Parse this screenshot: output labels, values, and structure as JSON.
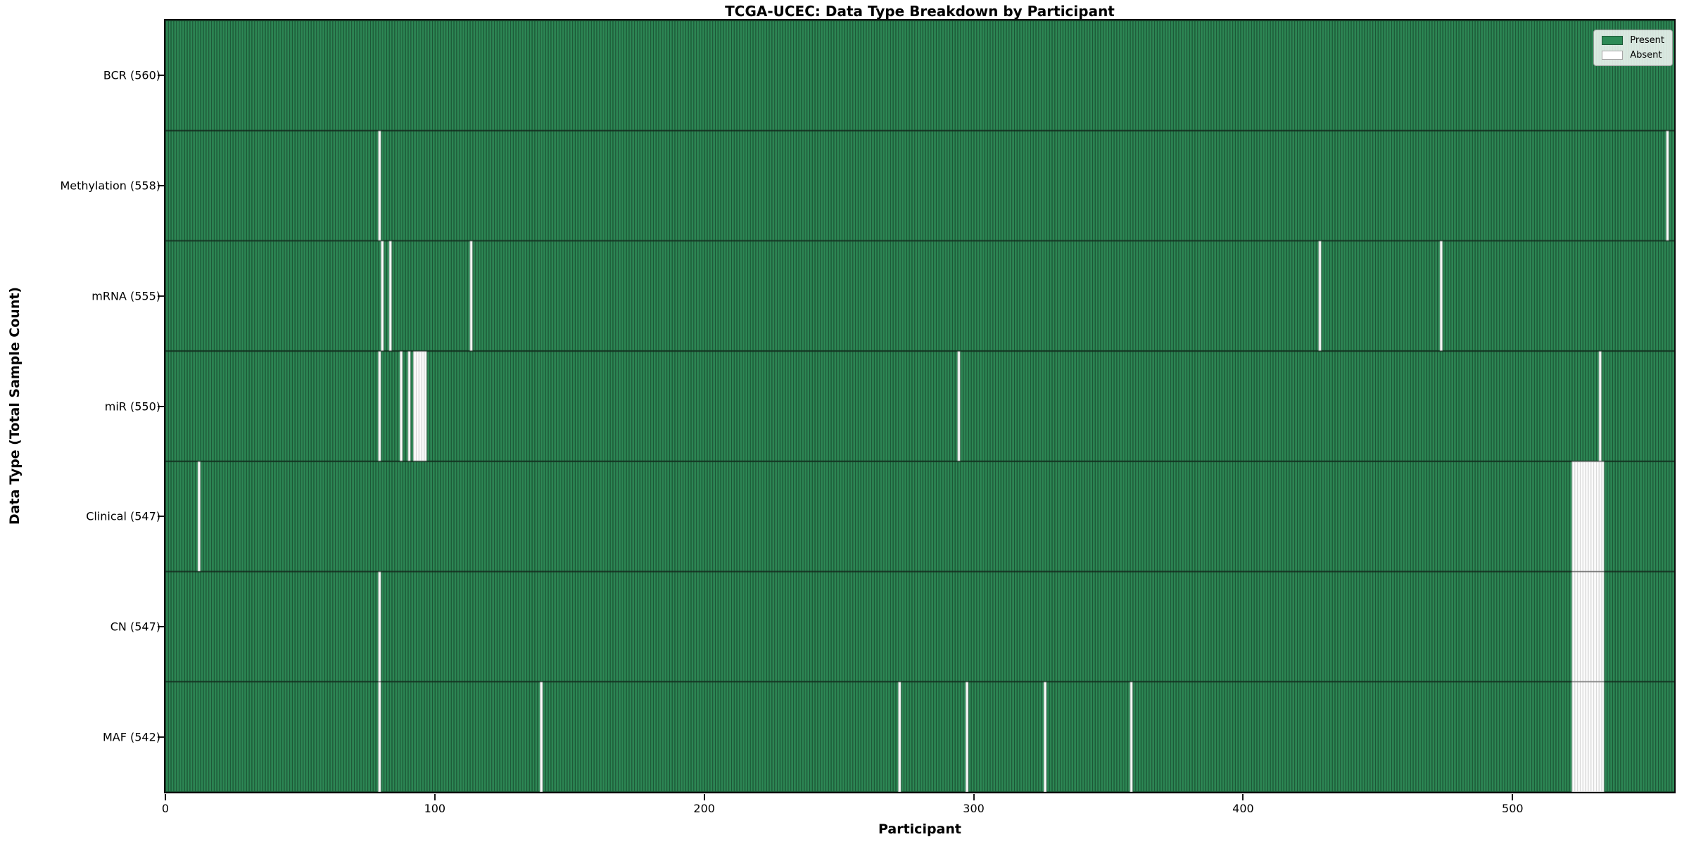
{
  "figure": {
    "title": "TCGA-UCEC: Data Type Breakdown by Participant",
    "xlabel": "Participant",
    "ylabel": "Data Type (Total Sample Count)"
  },
  "legend": {
    "items": [
      {
        "label": "Present",
        "color": "#2E8B57"
      },
      {
        "label": "Absent",
        "color": "#FFFFFF"
      }
    ]
  },
  "chart_data": {
    "type": "heatmap",
    "title": "TCGA-UCEC: Data Type Breakdown by Participant",
    "xlabel": "Participant",
    "ylabel": "Data Type (Total Sample Count)",
    "legend_position": "upper right",
    "grid": false,
    "n_participants": 560,
    "x_ticks": [
      0,
      100,
      200,
      300,
      400,
      500
    ],
    "x_range": [
      0,
      560
    ],
    "colors": {
      "present": "#2E8B57",
      "absent": "#FFFFFF",
      "bar_edge_on_present": "rgba(0,0,0,0.50)",
      "bar_edge_on_absent": "rgba(0,0,0,0.20)",
      "row_separator": "rgba(0,0,0,0.55)"
    },
    "rows": [
      {
        "label": "BCR (560)",
        "name": "BCR",
        "present_count": 560,
        "absent_participants": []
      },
      {
        "label": "Methylation (558)",
        "name": "Methylation",
        "present_count": 558,
        "absent_participants": [
          79,
          557
        ]
      },
      {
        "label": "mRNA (555)",
        "name": "mRNA",
        "present_count": 555,
        "absent_participants": [
          80,
          83,
          113,
          428,
          473
        ]
      },
      {
        "label": "miR (550)",
        "name": "miR",
        "present_count": 550,
        "absent_participants": [
          79,
          87,
          90,
          92,
          93,
          94,
          95,
          96,
          294,
          532
        ]
      },
      {
        "label": "Clinical (547)",
        "name": "Clinical",
        "present_count": 547,
        "absent_participants": [
          12,
          522,
          523,
          524,
          525,
          526,
          527,
          528,
          529,
          530,
          531,
          532,
          533
        ]
      },
      {
        "label": "CN (547)",
        "name": "CN",
        "present_count": 547,
        "absent_participants": [
          79,
          522,
          523,
          524,
          525,
          526,
          527,
          528,
          529,
          530,
          531,
          532,
          533
        ]
      },
      {
        "label": "MAF (542)",
        "name": "MAF",
        "present_count": 542,
        "absent_participants": [
          79,
          139,
          272,
          297,
          326,
          358,
          522,
          523,
          524,
          525,
          526,
          527,
          528,
          529,
          530,
          531,
          532,
          533
        ]
      }
    ]
  }
}
